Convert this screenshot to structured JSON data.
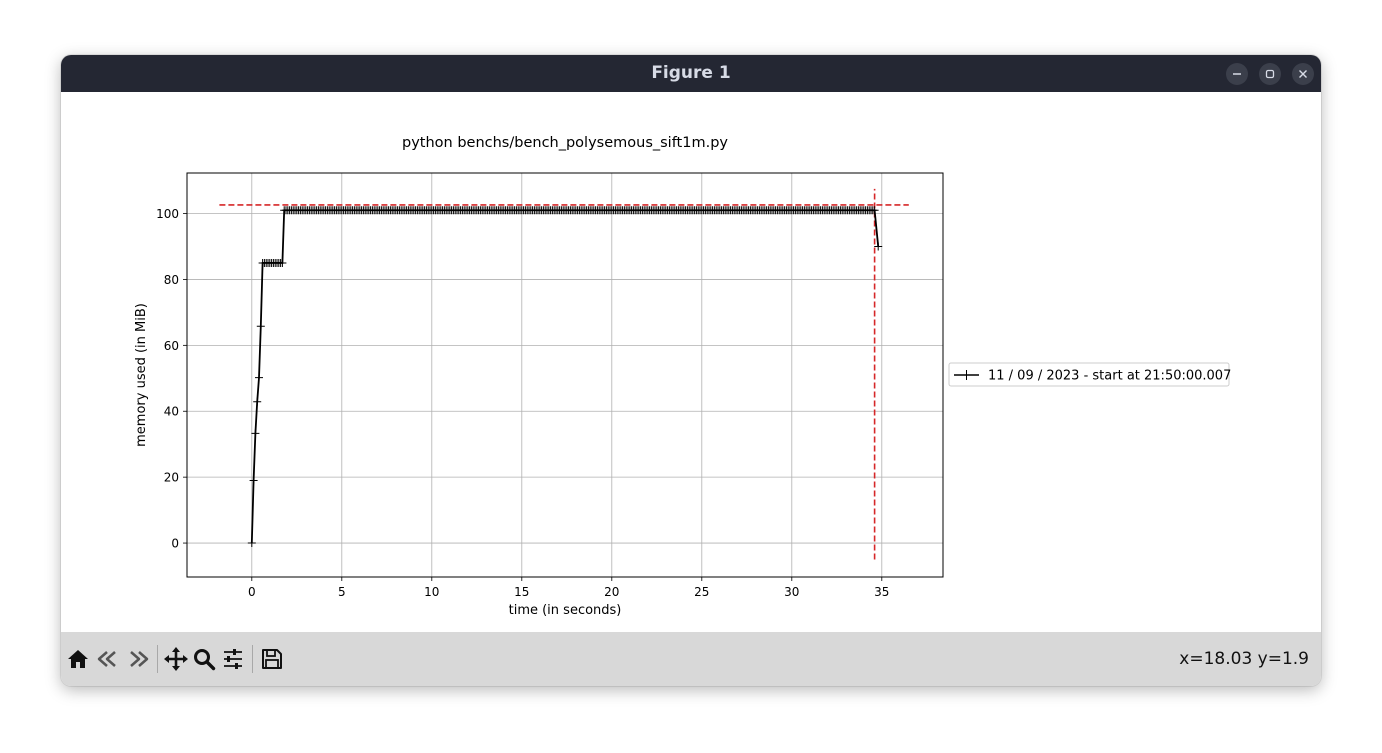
{
  "window": {
    "title": "Figure 1",
    "controls": [
      "minimize-icon",
      "maximize-icon",
      "close-icon"
    ]
  },
  "toolbar": {
    "tools": [
      "home-icon",
      "back-icon",
      "forward-icon",
      "pan-icon",
      "zoom-icon",
      "configure-subplots-icon",
      "save-icon"
    ],
    "coordinates": "x=18.03 y=1.9"
  },
  "chart_data": {
    "type": "line",
    "title": "python benchs/bench_polysemous_sift1m.py",
    "xlabel": "time (in seconds)",
    "ylabel": "memory used (in MiB)",
    "xlim": [
      -3.6,
      38.4
    ],
    "ylim": [
      -10.3,
      112.3
    ],
    "xticks": [
      0,
      5,
      10,
      15,
      20,
      25,
      30,
      35
    ],
    "yticks": [
      0,
      20,
      40,
      60,
      80,
      100
    ],
    "grid": true,
    "marker": "+",
    "line_color": "#000000",
    "legend_placement": "outside-right",
    "series": [
      {
        "name": "11 / 09 / 2023 - start at 21:50:00.007",
        "x": [
          0.0,
          0.1,
          0.2,
          0.3,
          0.4,
          0.5,
          0.6,
          0.7,
          0.8,
          0.9,
          1.0,
          1.1,
          1.2,
          1.3,
          1.4,
          1.5,
          1.6,
          1.7,
          1.8,
          1.9,
          34.6,
          34.8
        ],
        "y": [
          0.0,
          19.0,
          33.3,
          42.9,
          50.2,
          65.8,
          85.0,
          85.0,
          85.0,
          85.0,
          85.0,
          85.0,
          85.0,
          85.0,
          85.0,
          85.0,
          85.0,
          85.0,
          101.0,
          101.0,
          101.0,
          90.0
        ]
      }
    ],
    "plateau": {
      "start": 1.9,
      "end": 34.6,
      "value": 101.0,
      "step": 0.1
    },
    "max_markers": {
      "color": "#d62728",
      "horizontal_y": 102.6,
      "horizontal_x_range": [
        -1.8,
        36.5
      ],
      "vertical_x": 34.6,
      "vertical_y_range": [
        -5.0,
        107.5
      ]
    }
  }
}
